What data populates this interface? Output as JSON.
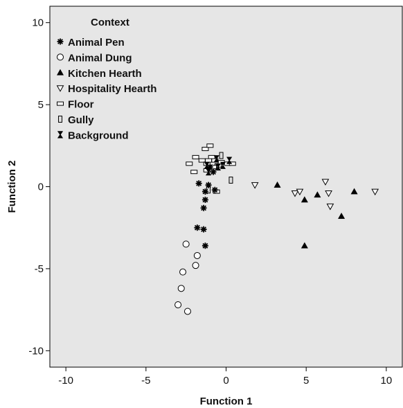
{
  "chart_data": {
    "type": "scatter",
    "xlabel": "Function 1",
    "ylabel": "Function 2",
    "xlim": [
      -11,
      11
    ],
    "ylim": [
      -11,
      11
    ],
    "xticks": [
      -10,
      -5,
      0,
      5,
      10
    ],
    "yticks": [
      -10,
      -5,
      0,
      5,
      10
    ],
    "grid": false,
    "plot_background": "#e6e6e6",
    "legend": {
      "title": "Context",
      "placement": "top-left"
    },
    "series": [
      {
        "name": "Animal Pen",
        "marker": "asterisk",
        "points": [
          [
            -1.7,
            0.2
          ],
          [
            -1.1,
            0.1
          ],
          [
            -1.3,
            -0.3
          ],
          [
            -1.3,
            -0.8
          ],
          [
            -1.4,
            -1.3
          ],
          [
            -1.8,
            -2.5
          ],
          [
            -1.4,
            -2.6
          ],
          [
            -1.3,
            -3.6
          ],
          [
            -0.7,
            -0.2
          ],
          [
            -0.8,
            0.9
          ],
          [
            -1.0,
            1.2
          ]
        ]
      },
      {
        "name": "Animal Dung",
        "marker": "circle",
        "points": [
          [
            -2.5,
            -3.5
          ],
          [
            -1.8,
            -4.2
          ],
          [
            -1.9,
            -4.8
          ],
          [
            -2.7,
            -5.2
          ],
          [
            -2.8,
            -6.2
          ],
          [
            -3.0,
            -7.2
          ],
          [
            -2.4,
            -7.6
          ]
        ]
      },
      {
        "name": "Kitchen Hearth",
        "marker": "triangle",
        "points": [
          [
            3.2,
            0.1
          ],
          [
            5.7,
            -0.5
          ],
          [
            4.9,
            -0.8
          ],
          [
            8.0,
            -0.3
          ],
          [
            7.2,
            -1.8
          ],
          [
            4.9,
            -3.6
          ]
        ]
      },
      {
        "name": "Hospitality Hearth",
        "marker": "triangle-down",
        "points": [
          [
            1.8,
            0.1
          ],
          [
            4.3,
            -0.4
          ],
          [
            4.6,
            -0.3
          ],
          [
            6.2,
            0.3
          ],
          [
            6.4,
            -0.4
          ],
          [
            6.5,
            -1.2
          ],
          [
            9.3,
            -0.3
          ]
        ]
      },
      {
        "name": "Floor",
        "marker": "square",
        "points": [
          [
            -2.3,
            1.4
          ],
          [
            -1.9,
            1.8
          ],
          [
            -1.5,
            1.6
          ],
          [
            -1.2,
            1.4
          ],
          [
            -1.3,
            2.3
          ],
          [
            -1.0,
            2.5
          ],
          [
            -0.9,
            1.8
          ],
          [
            -0.7,
            1.6
          ],
          [
            -0.5,
            1.3
          ],
          [
            -0.3,
            1.5
          ],
          [
            0.1,
            1.4
          ],
          [
            0.4,
            1.4
          ],
          [
            -1.2,
            1.0
          ],
          [
            -0.8,
            1.2
          ],
          [
            -2.0,
            0.9
          ],
          [
            -0.6,
            -0.3
          ],
          [
            -1.1,
            1.6
          ]
        ]
      },
      {
        "name": "Gully",
        "marker": "rect-tall",
        "points": [
          [
            0.3,
            0.4
          ],
          [
            -1.1,
            -0.2
          ],
          [
            -0.3,
            1.9
          ]
        ]
      },
      {
        "name": "Background",
        "marker": "hourglass",
        "points": [
          [
            -1.2,
            1.3
          ],
          [
            -1.1,
            0.9
          ],
          [
            -0.5,
            1.2
          ],
          [
            -0.6,
            1.7
          ],
          [
            -0.2,
            1.3
          ],
          [
            0.2,
            1.6
          ]
        ]
      }
    ]
  }
}
